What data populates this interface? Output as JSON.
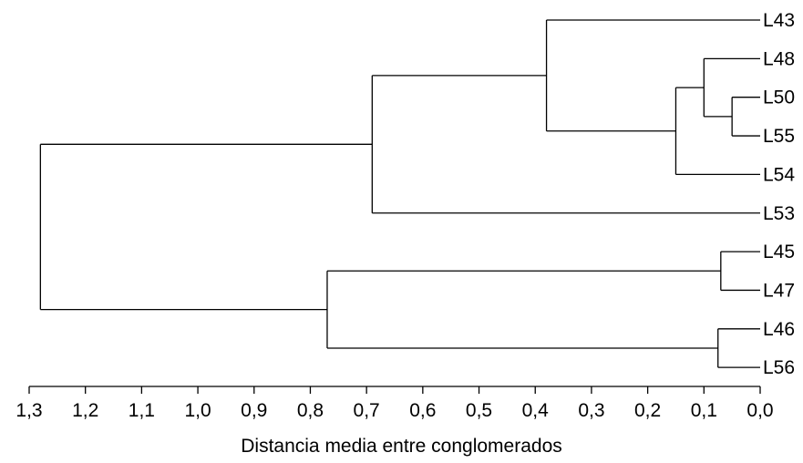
{
  "chart_data": {
    "type": "dendrogram",
    "xlabel": "Distancia media entre conglomerados",
    "xlim": [
      1.3,
      0.0
    ],
    "x_ticks": [
      "1,3",
      "1,2",
      "1,1",
      "1,0",
      "0,9",
      "0,8",
      "0,7",
      "0,6",
      "0,5",
      "0,4",
      "0,3",
      "0,2",
      "0,1",
      "0,0"
    ],
    "leaves": [
      "L43",
      "L48",
      "L50",
      "L55",
      "L54",
      "L53",
      "L45",
      "L47",
      "L46",
      "L56"
    ],
    "merges": [
      {
        "id": "c1",
        "left": "L50",
        "right": "L55",
        "height": 0.05
      },
      {
        "id": "c2",
        "left": "L48",
        "right": "c1",
        "height": 0.1
      },
      {
        "id": "c3",
        "left": "c2",
        "right": "L54",
        "height": 0.15
      },
      {
        "id": "c4",
        "left": "L43",
        "right": "c3",
        "height": 0.38
      },
      {
        "id": "c5",
        "left": "c4",
        "right": "L53",
        "height": 0.69
      },
      {
        "id": "c6",
        "left": "L45",
        "right": "L47",
        "height": 0.07
      },
      {
        "id": "c7",
        "left": "L46",
        "right": "L56",
        "height": 0.075
      },
      {
        "id": "c8",
        "left": "c6",
        "right": "c7",
        "height": 0.77
      },
      {
        "id": "c9",
        "left": "c5",
        "right": "c8",
        "height": 1.28
      }
    ]
  }
}
